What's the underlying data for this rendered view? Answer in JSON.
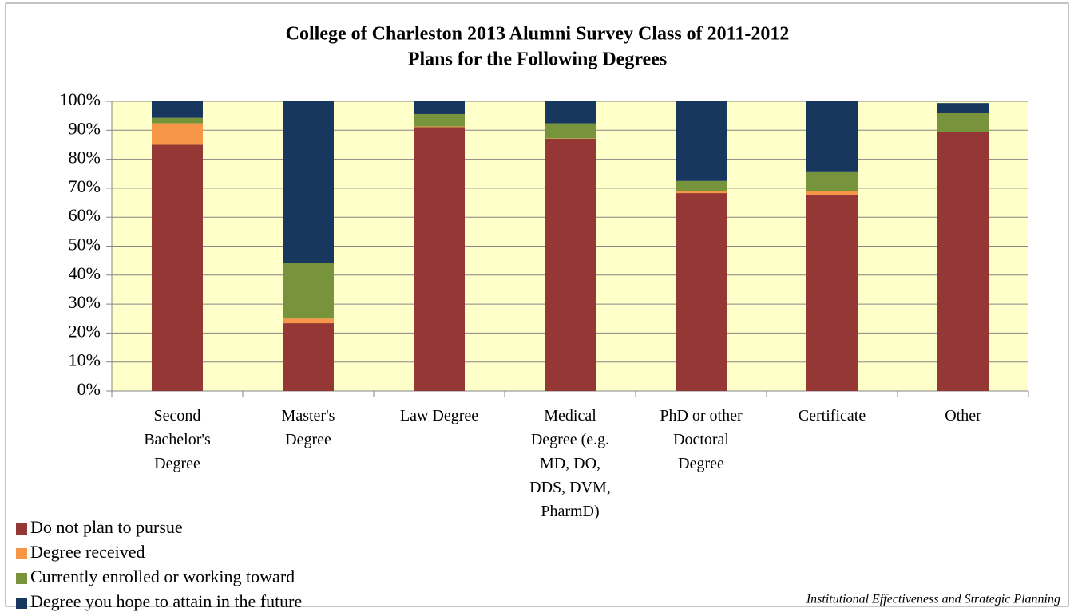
{
  "chart_data": {
    "type": "stacked_bar",
    "title": "College of Charleston 2013 Alumni Survey Class of 2011-2012",
    "subtitle": "Plans for the Following Degrees",
    "categories": [
      "Second Bachelor's Degree",
      "Master's Degree",
      "Law Degree",
      "Medical Degree (e.g. MD, DO, DDS, DVM, PharmD)",
      "PhD or other Doctoral Degree",
      "Certificate",
      "Other"
    ],
    "series": [
      {
        "name": "Do not plan to pursue",
        "color": "#953735",
        "values": [
          85.0,
          23.4,
          91.1,
          87.1,
          68.3,
          67.5,
          89.5
        ]
      },
      {
        "name": "Degree received",
        "color": "#f79646",
        "values": [
          7.4,
          1.6,
          0.2,
          0.1,
          0.6,
          1.6,
          0
        ]
      },
      {
        "name": "Currently enrolled or working toward",
        "color": "#77933c",
        "values": [
          1.9,
          19.2,
          4.3,
          5.2,
          3.6,
          6.7,
          6.6
        ]
      },
      {
        "name": "Degree you hope to attain in the future",
        "color": "#17375e",
        "values": [
          5.7,
          55.8,
          4.4,
          7.6,
          27.5,
          24.2,
          3.3
        ]
      }
    ],
    "ylim": [
      0,
      100
    ],
    "yticks": [
      {
        "value": 0,
        "label": "0%"
      },
      {
        "value": 10,
        "label": "10%"
      },
      {
        "value": 20,
        "label": "20%"
      },
      {
        "value": 30,
        "label": "30%"
      },
      {
        "value": 40,
        "label": "40%"
      },
      {
        "value": 50,
        "label": "50%"
      },
      {
        "value": 60,
        "label": "60%"
      },
      {
        "value": 70,
        "label": "70%"
      },
      {
        "value": 80,
        "label": "80%"
      },
      {
        "value": 90,
        "label": "90%"
      },
      {
        "value": 100,
        "label": "100%"
      }
    ],
    "grid": true,
    "plot_background": "#ffffc9",
    "legend": "bottom-left",
    "footer": "Institutional Effectiveness and Strategic Planning"
  }
}
